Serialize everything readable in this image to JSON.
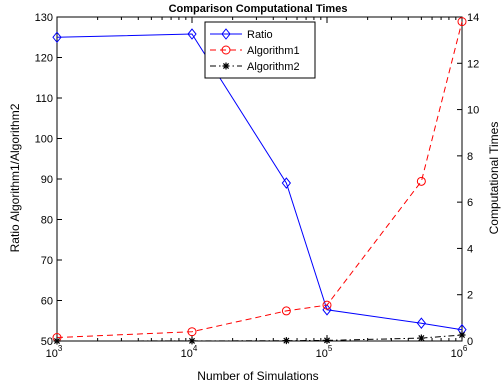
{
  "chart_data": {
    "type": "line",
    "title": "Comparison Computational Times",
    "xlabel": "Number of Simulations",
    "ylabel_left": "Ratio Algorithm1/Algorithm2",
    "ylabel_right": "Computational Times",
    "x_scale": "log",
    "xlim": [
      1000,
      1000000
    ],
    "x_ticks": [
      {
        "value": 1000,
        "mantissa": "10",
        "exp": "3"
      },
      {
        "value": 10000,
        "mantissa": "10",
        "exp": "4"
      },
      {
        "value": 100000,
        "mantissa": "10",
        "exp": "5"
      },
      {
        "value": 1000000,
        "mantissa": "10",
        "exp": "6"
      }
    ],
    "ylim_left": [
      50,
      130
    ],
    "y_ticks_left": [
      "50",
      "60",
      "70",
      "80",
      "90",
      "100",
      "110",
      "120",
      "130"
    ],
    "ylim_right": [
      0,
      14
    ],
    "y_ticks_right": [
      "0",
      "2",
      "4",
      "6",
      "8",
      "10",
      "12",
      "14"
    ],
    "grid": false,
    "legend_position": "top-center",
    "series": [
      {
        "name": "Ratio",
        "axis": "left",
        "color": "#0000ff",
        "line_style": "solid",
        "marker": "diamond",
        "x": [
          1000,
          10000,
          50000,
          100000,
          500000,
          1000000
        ],
        "y": [
          125,
          125.8,
          89,
          57.7,
          54.4,
          52.8
        ]
      },
      {
        "name": "Algorithm1",
        "axis": "right",
        "color": "#ff0000",
        "line_style": "dashed",
        "marker": "circle",
        "x": [
          1000,
          10000,
          50000,
          100000,
          500000,
          1000000
        ],
        "y": [
          0.15,
          0.4,
          1.3,
          1.55,
          6.9,
          13.8
        ]
      },
      {
        "name": "Algorithm2",
        "axis": "right",
        "color": "#000000",
        "line_style": "dashdot",
        "marker": "star",
        "x": [
          1000,
          10000,
          50000,
          100000,
          500000,
          1000000
        ],
        "y": [
          0.0,
          0.005,
          0.015,
          0.027,
          0.127,
          0.26
        ]
      }
    ]
  }
}
